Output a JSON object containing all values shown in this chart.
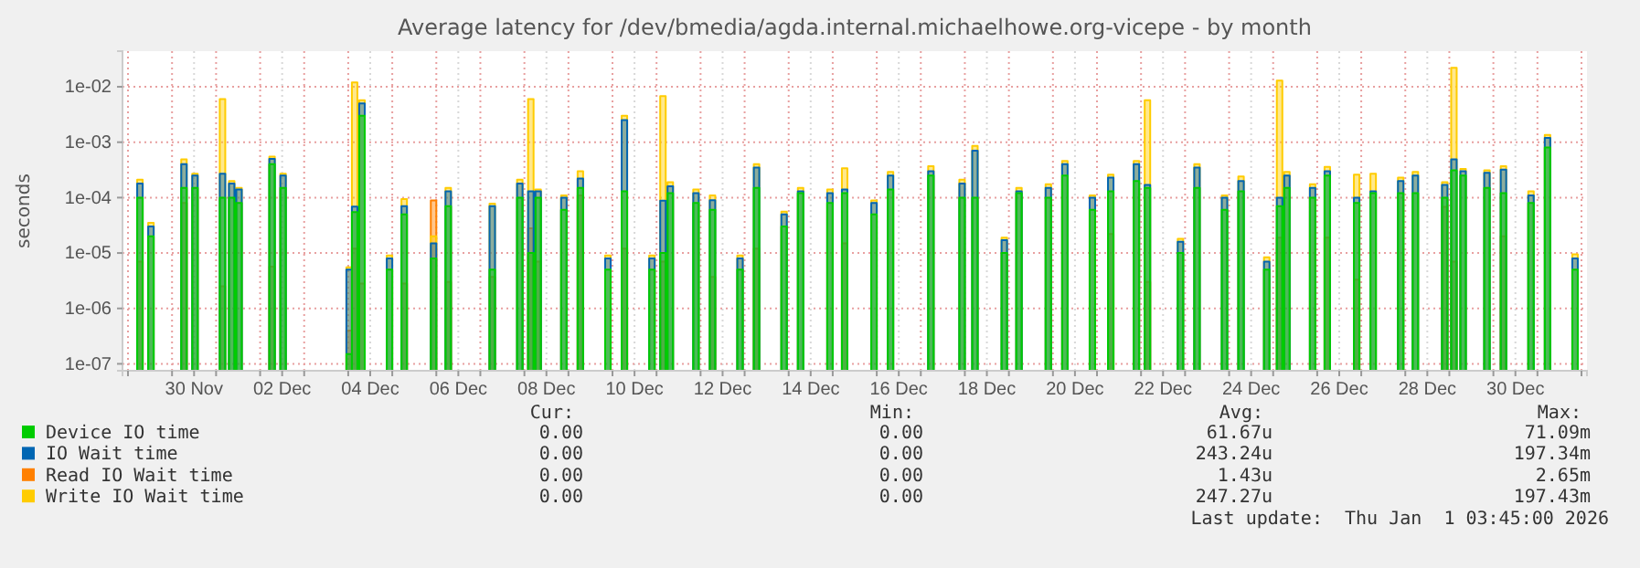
{
  "chart_data": {
    "type": "area",
    "title": "Average latency for /dev/bmedia/agda.internal.michaelhowe.org-vicepe - by month",
    "ylabel": "seconds",
    "log": "y",
    "grid": true,
    "legend": "bottom",
    "xlim": [
      "2025-11-28T21:00",
      "2026-01-01T03:00"
    ],
    "xticks": [
      {
        "value": "2025-11-29T00:00",
        "label": null
      },
      {
        "value": "2025-11-30T00:00",
        "label": null
      },
      {
        "value": "2025-11-30T12:00",
        "label": "30 Nov"
      },
      {
        "value": "2025-12-01T00:00",
        "label": null
      },
      {
        "value": "2025-12-02T00:00",
        "label": null
      },
      {
        "value": "2025-12-02T12:00",
        "label": "02 Dec"
      },
      {
        "value": "2025-12-03T00:00",
        "label": null
      },
      {
        "value": "2025-12-04T00:00",
        "label": null
      },
      {
        "value": "2025-12-04T12:00",
        "label": "04 Dec"
      },
      {
        "value": "2025-12-05T00:00",
        "label": null
      },
      {
        "value": "2025-12-06T00:00",
        "label": null
      },
      {
        "value": "2025-12-06T12:00",
        "label": "06 Dec"
      },
      {
        "value": "2025-12-07T00:00",
        "label": null
      },
      {
        "value": "2025-12-08T00:00",
        "label": null
      },
      {
        "value": "2025-12-08T12:00",
        "label": "08 Dec"
      },
      {
        "value": "2025-12-09T00:00",
        "label": null
      },
      {
        "value": "2025-12-10T00:00",
        "label": null
      },
      {
        "value": "2025-12-10T12:00",
        "label": "10 Dec"
      },
      {
        "value": "2025-12-11T00:00",
        "label": null
      },
      {
        "value": "2025-12-12T00:00",
        "label": null
      },
      {
        "value": "2025-12-12T12:00",
        "label": "12 Dec"
      },
      {
        "value": "2025-12-13T00:00",
        "label": null
      },
      {
        "value": "2025-12-14T00:00",
        "label": null
      },
      {
        "value": "2025-12-14T12:00",
        "label": "14 Dec"
      },
      {
        "value": "2025-12-15T00:00",
        "label": null
      },
      {
        "value": "2025-12-16T00:00",
        "label": null
      },
      {
        "value": "2025-12-16T12:00",
        "label": "16 Dec"
      },
      {
        "value": "2025-12-17T00:00",
        "label": null
      },
      {
        "value": "2025-12-18T00:00",
        "label": null
      },
      {
        "value": "2025-12-18T12:00",
        "label": "18 Dec"
      },
      {
        "value": "2025-12-19T00:00",
        "label": null
      },
      {
        "value": "2025-12-20T00:00",
        "label": null
      },
      {
        "value": "2025-12-20T12:00",
        "label": "20 Dec"
      },
      {
        "value": "2025-12-21T00:00",
        "label": null
      },
      {
        "value": "2025-12-22T00:00",
        "label": null
      },
      {
        "value": "2025-12-22T12:00",
        "label": "22 Dec"
      },
      {
        "value": "2025-12-23T00:00",
        "label": null
      },
      {
        "value": "2025-12-24T00:00",
        "label": null
      },
      {
        "value": "2025-12-24T12:00",
        "label": "24 Dec"
      },
      {
        "value": "2025-12-25T00:00",
        "label": null
      },
      {
        "value": "2025-12-26T00:00",
        "label": null
      },
      {
        "value": "2025-12-26T12:00",
        "label": "26 Dec"
      },
      {
        "value": "2025-12-27T00:00",
        "label": null
      },
      {
        "value": "2025-12-28T00:00",
        "label": null
      },
      {
        "value": "2025-12-28T12:00",
        "label": "28 Dec"
      },
      {
        "value": "2025-12-29T00:00",
        "label": null
      },
      {
        "value": "2025-12-30T00:00",
        "label": null
      },
      {
        "value": "2025-12-30T12:00",
        "label": "30 Dec"
      },
      {
        "value": "2025-12-31T00:00",
        "label": null
      },
      {
        "value": "2026-01-01T00:00",
        "label": null
      }
    ],
    "ylim": [
      7.5e-08,
      0.044
    ],
    "yticks": [
      {
        "value": 1e-07,
        "label": "1e-07"
      },
      {
        "value": 1e-06,
        "label": "1e-06"
      },
      {
        "value": 1e-05,
        "label": "1e-05"
      },
      {
        "value": 0.0001,
        "label": "1e-04"
      },
      {
        "value": 0.001,
        "label": "1e-03"
      },
      {
        "value": 0.01,
        "label": "1e-02"
      }
    ],
    "x": [
      "2025-11-29T05:00",
      "2025-11-29T11:00",
      "2025-11-30T05:00",
      "2025-11-30T11:00",
      "2025-12-01T02:00",
      "2025-12-01T07:00",
      "2025-12-01T11:00",
      "2025-12-02T05:00",
      "2025-12-02T11:00",
      "2025-12-03T23:00",
      "2025-12-04T02:00",
      "2025-12-04T06:00",
      "2025-12-04T21:00",
      "2025-12-05T05:00",
      "2025-12-05T21:00",
      "2025-12-06T05:00",
      "2025-12-07T05:00",
      "2025-12-07T20:00",
      "2025-12-08T02:00",
      "2025-12-08T06:00",
      "2025-12-08T20:00",
      "2025-12-09T05:00",
      "2025-12-09T20:00",
      "2025-12-10T05:00",
      "2025-12-10T20:00",
      "2025-12-11T02:00",
      "2025-12-11T06:00",
      "2025-12-11T20:00",
      "2025-12-12T05:00",
      "2025-12-12T20:00",
      "2025-12-13T05:00",
      "2025-12-13T20:00",
      "2025-12-14T05:00",
      "2025-12-14T21:00",
      "2025-12-15T05:00",
      "2025-12-15T21:00",
      "2025-12-16T06:00",
      "2025-12-17T04:00",
      "2025-12-17T21:00",
      "2025-12-18T04:00",
      "2025-12-18T20:00",
      "2025-12-19T04:00",
      "2025-12-19T20:00",
      "2025-12-20T05:00",
      "2025-12-20T20:00",
      "2025-12-21T06:00",
      "2025-12-21T20:00",
      "2025-12-22T02:00",
      "2025-12-22T20:00",
      "2025-12-23T05:00",
      "2025-12-23T20:00",
      "2025-12-24T05:00",
      "2025-12-24T19:00",
      "2025-12-25T02:00",
      "2025-12-25T06:00",
      "2025-12-25T20:00",
      "2025-12-26T04:00",
      "2025-12-26T20:00",
      "2025-12-27T05:00",
      "2025-12-27T20:00",
      "2025-12-28T04:00",
      "2025-12-28T20:00",
      "2025-12-29T01:00",
      "2025-12-29T06:00",
      "2025-12-29T19:00",
      "2025-12-30T04:00",
      "2025-12-30T19:00",
      "2025-12-31T04:00",
      "2025-12-31T19:00"
    ],
    "series": [
      {
        "name": "Device IO time",
        "color": "#00cc00",
        "values": [
          0.0001,
          2e-05,
          0.00015,
          0.00015,
          0.0001,
          0.0001,
          8e-05,
          0.0004,
          0.00015,
          1.5e-07,
          5.5e-05,
          0.003,
          5e-06,
          5e-05,
          8e-06,
          7e-05,
          5e-06,
          0.0001,
          1e-05,
          0.0001,
          6e-05,
          0.00015,
          5e-06,
          0.00013,
          5e-06,
          1e-05,
          0.00012,
          8e-05,
          6e-05,
          5e-06,
          0.00015,
          3e-05,
          0.00012,
          8e-05,
          0.00012,
          5e-05,
          0.00014,
          0.00025,
          0.0001,
          0.0001,
          1e-05,
          0.00012,
          0.0001,
          0.00025,
          6e-05,
          0.00013,
          0.0002,
          0.00015,
          1e-05,
          0.00015,
          6e-05,
          0.00013,
          5e-06,
          7e-05,
          0.00015,
          0.0001,
          0.00025,
          8e-05,
          0.00012,
          0.00012,
          0.00012,
          0.0001,
          0.00031,
          0.00025,
          0.00015,
          0.00012,
          8e-05,
          0.0008,
          5e-06
        ]
      },
      {
        "name": "IO Wait time",
        "color": "#0066b3",
        "values": [
          0.00018,
          3e-05,
          0.0004,
          0.00025,
          0.00027,
          0.00018,
          0.00014,
          0.0005,
          0.00025,
          5e-06,
          6.9e-05,
          0.005,
          8e-06,
          7e-05,
          1.5e-05,
          0.00013,
          7e-05,
          0.00018,
          0.00013,
          0.00013,
          0.0001,
          0.00022,
          8e-06,
          0.0025,
          8e-06,
          8.8e-05,
          0.00016,
          0.00012,
          9e-05,
          8e-06,
          0.00035,
          5e-05,
          0.00013,
          0.00012,
          0.00014,
          8e-05,
          0.00025,
          0.0003,
          0.00018,
          0.0007,
          1.7e-05,
          0.00013,
          0.00015,
          0.0004,
          0.0001,
          0.00023,
          0.0004,
          0.00017,
          1.6e-05,
          0.00035,
          0.0001,
          0.0002,
          7e-06,
          0.0001,
          0.00025,
          0.00015,
          0.0003,
          0.0001,
          0.00013,
          0.0002,
          0.00025,
          0.00017,
          0.00049,
          0.0003,
          0.00028,
          0.00032,
          0.00011,
          0.0012,
          8e-06
        ]
      },
      {
        "name": "Read IO Wait time",
        "color": "#ff8000",
        "values": [
          7e-06,
          null,
          8e-05,
          null,
          2.5e-06,
          null,
          null,
          5.7e-06,
          null,
          4e-07,
          1.2e-05,
          2.8e-06,
          null,
          2.8e-06,
          8.9e-05,
          3e-06,
          3.7e-06,
          null,
          2.8e-05,
          7e-06,
          null,
          0.00011,
          null,
          1.2e-05,
          null,
          7e-06,
          null,
          null,
          3.7e-06,
          null,
          1.2e-05,
          null,
          null,
          null,
          1.5e-05,
          null,
          null,
          null,
          null,
          null,
          null,
          null,
          null,
          null,
          null,
          2.2e-05,
          null,
          3e-06,
          null,
          null,
          null,
          null,
          null,
          1.9e-05,
          null,
          null,
          1.9e-05,
          3.3e-06,
          null,
          null,
          null,
          6.8e-05,
          7e-06,
          null,
          null,
          2e-05,
          null,
          null,
          null
        ]
      },
      {
        "name": "Write IO Wait time",
        "color": "#ffcc00",
        "values": [
          0.00021,
          3.5e-05,
          0.00049,
          0.00027,
          0.006,
          0.0002,
          0.00015,
          0.00055,
          0.00027,
          5.5e-06,
          0.012,
          0.0057,
          9e-06,
          9.4e-05,
          2e-05,
          0.00015,
          7.8e-05,
          0.00021,
          0.006,
          0.00014,
          0.00011,
          0.0003,
          9e-06,
          0.003,
          9e-06,
          0.0068,
          0.00019,
          0.00014,
          0.00011,
          9e-06,
          0.0004,
          5.6e-05,
          0.00015,
          0.00014,
          0.00034,
          8.9e-05,
          0.00029,
          0.00037,
          0.00021,
          0.00086,
          1.9e-05,
          0.00015,
          0.000175,
          0.00046,
          0.00011,
          0.00026,
          0.00046,
          0.0057,
          1.8e-05,
          0.0004,
          0.00011,
          0.00024,
          8.4e-06,
          0.013,
          0.00029,
          0.000175,
          0.00036,
          0.00026,
          0.00027,
          0.00023,
          0.00029,
          0.00019,
          0.022,
          0.00033,
          0.00031,
          0.00037,
          0.00013,
          0.00135,
          9.5e-06
        ]
      }
    ],
    "annotations": [
      "Cur:",
      "Min:",
      "Avg:",
      "Max:",
      "0.00",
      "0.00",
      "61.67u",
      "71.09m",
      "0.00",
      "0.00",
      "243.24u",
      "197.34m",
      "0.00",
      "0.00",
      "1.43u",
      "2.65m",
      "0.00",
      "0.00",
      "247.27u",
      "197.43m",
      "Last update:  Thu Jan  1 03:45:00 2026"
    ]
  }
}
